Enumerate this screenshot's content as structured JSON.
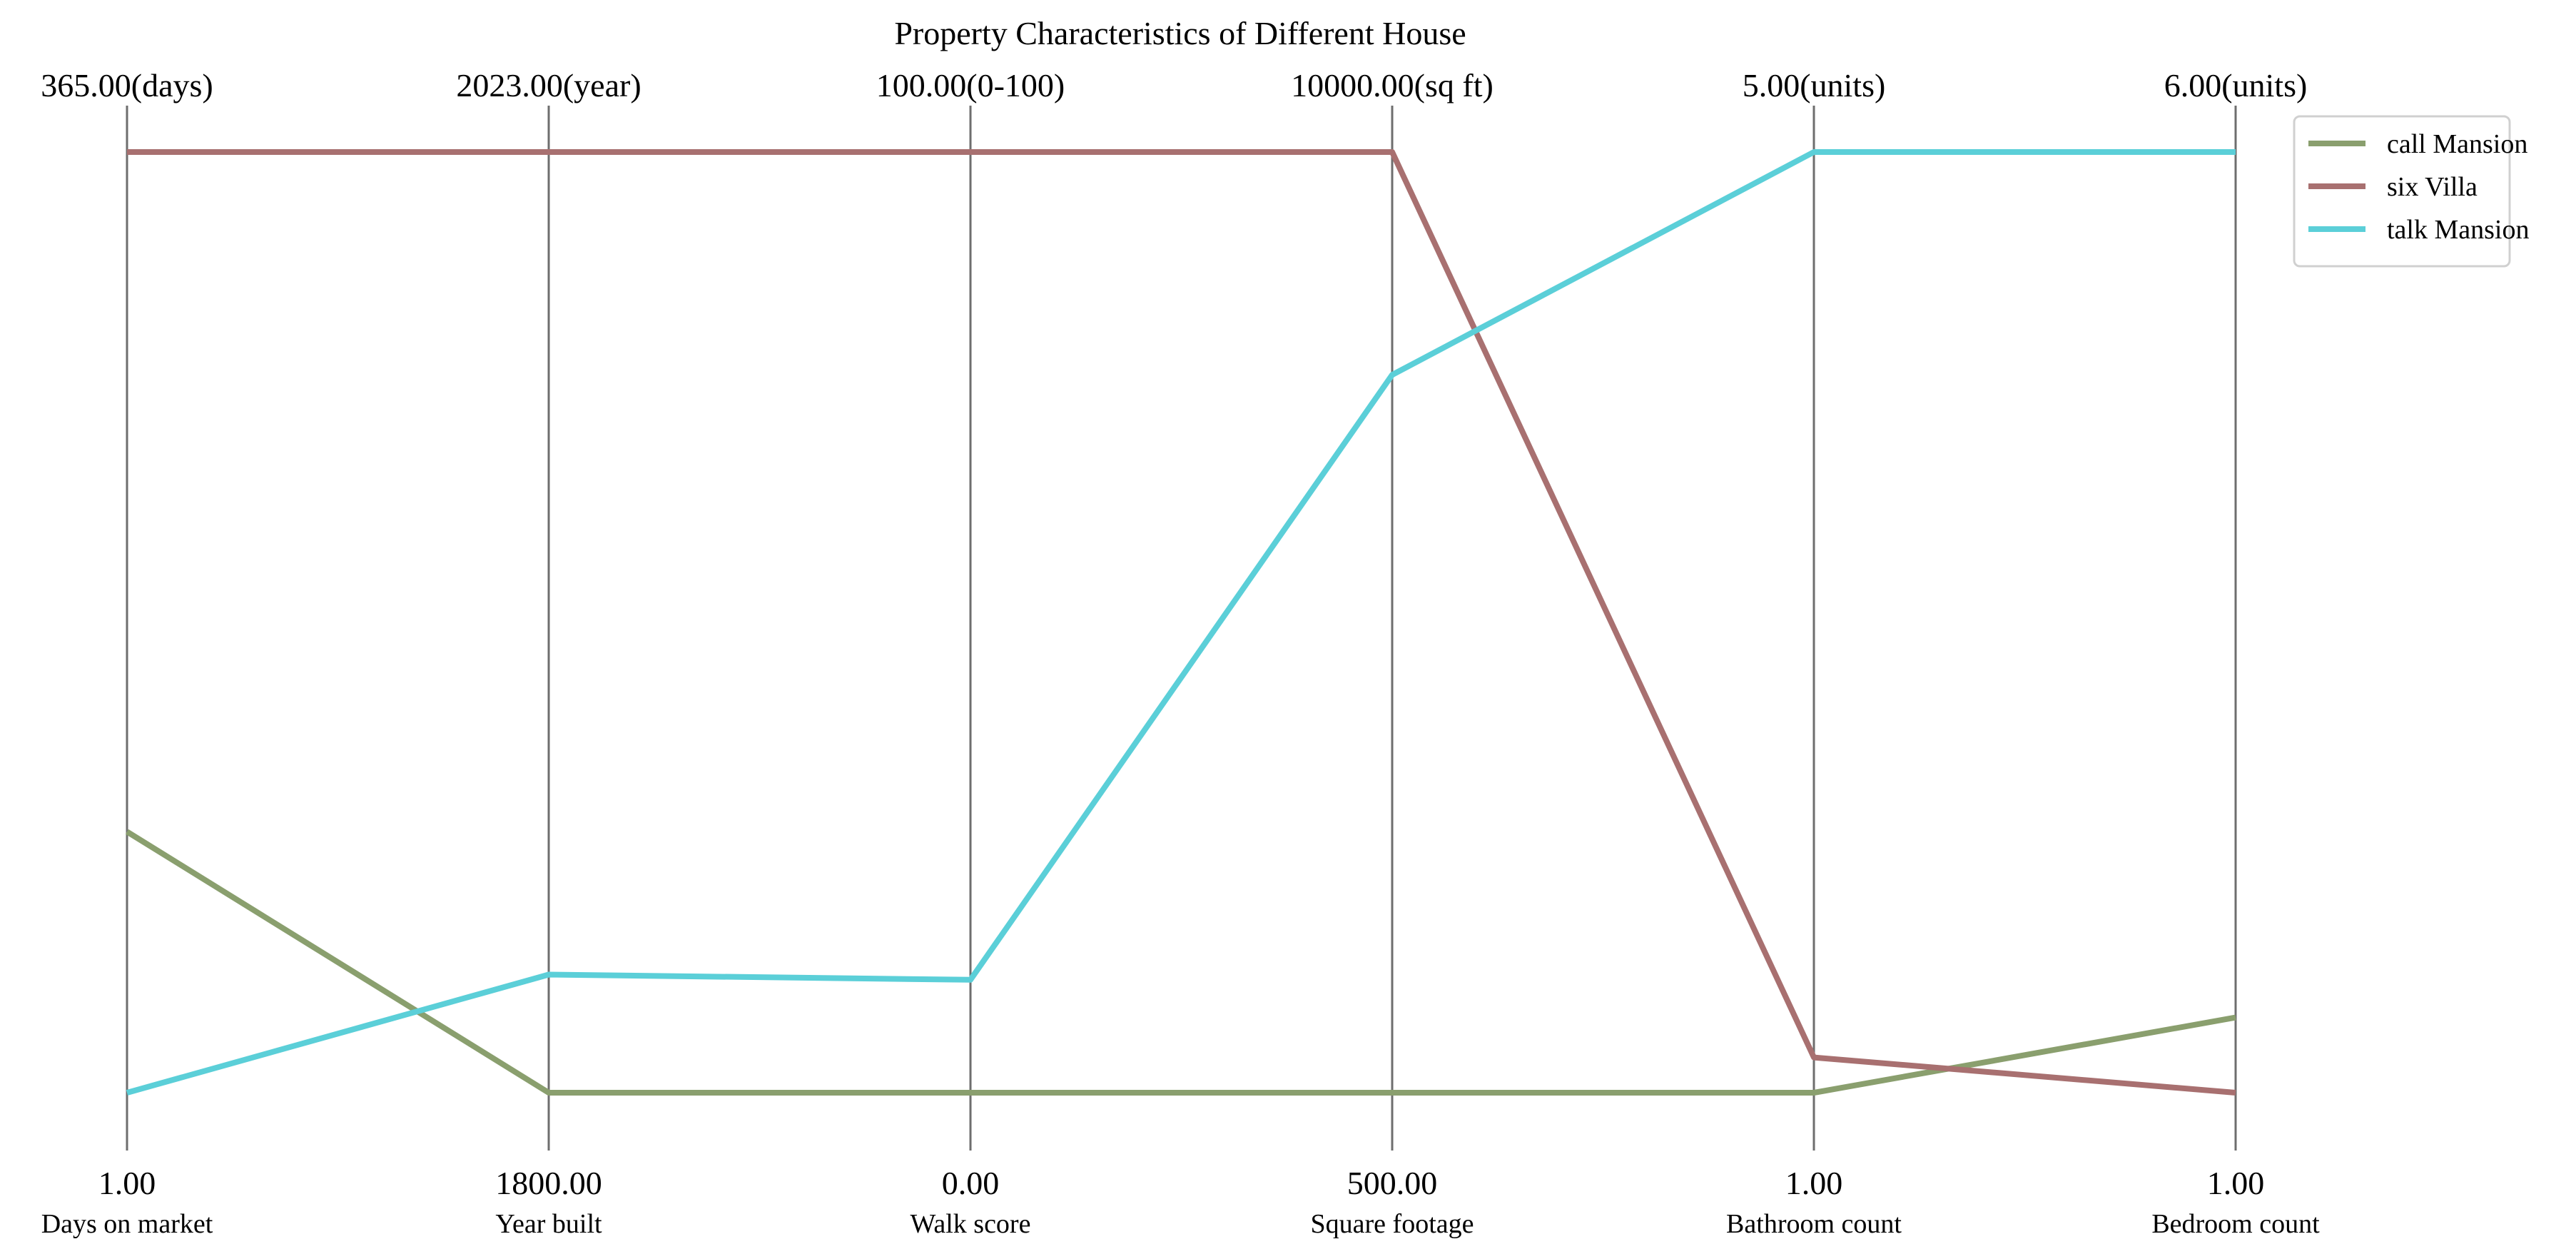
{
  "chart_data": {
    "type": "parallel_coordinates",
    "title": "Property Characteristics of Different House",
    "axes": [
      {
        "name": "Days on market",
        "min": 1,
        "max": 365,
        "min_label": "1.00",
        "max_label": "365.00(days)"
      },
      {
        "name": "Year built",
        "min": 1800,
        "max": 2023,
        "min_label": "1800.00",
        "max_label": "2023.00(year)"
      },
      {
        "name": "Walk score",
        "min": 0,
        "max": 100,
        "min_label": "0.00",
        "max_label": "100.00(0-100)"
      },
      {
        "name": "Square footage",
        "min": 500,
        "max": 10000,
        "min_label": "500.00",
        "max_label": "10000.00(sq ft)"
      },
      {
        "name": "Bathroom count",
        "min": 1,
        "max": 5,
        "min_label": "1.00",
        "max_label": "5.00(units)"
      },
      {
        "name": "Bedroom count",
        "min": 1,
        "max": 6,
        "min_label": "1.00",
        "max_label": "6.00(units)"
      }
    ],
    "series": [
      {
        "name": "call Mansion",
        "color": "#8a9f6e",
        "values": [
          102,
          1800,
          0,
          500,
          1,
          1.4
        ]
      },
      {
        "name": "six Villa",
        "color": "#a87070",
        "values": [
          365,
          2023,
          100,
          10000,
          1.15,
          1
        ]
      },
      {
        "name": "talk Mansion",
        "color": "#5bcfd8",
        "values": [
          1,
          1828,
          12,
          7750,
          5,
          6
        ]
      }
    ],
    "legend_position": "top-right",
    "grid": false
  }
}
